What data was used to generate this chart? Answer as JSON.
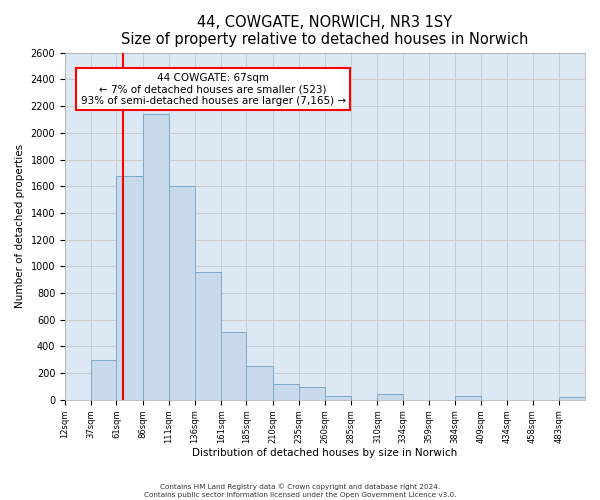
{
  "title": "44, COWGATE, NORWICH, NR3 1SY",
  "subtitle": "Size of property relative to detached houses in Norwich",
  "xlabel": "Distribution of detached houses by size in Norwich",
  "ylabel": "Number of detached properties",
  "bin_edges": [
    12,
    37,
    61,
    86,
    111,
    136,
    161,
    185,
    210,
    235,
    260,
    285,
    310,
    334,
    359,
    384,
    409,
    434,
    458,
    483,
    508
  ],
  "bin_heights": [
    0,
    300,
    1680,
    2140,
    1600,
    960,
    510,
    255,
    120,
    95,
    30,
    0,
    40,
    0,
    0,
    25,
    0,
    0,
    0,
    20
  ],
  "bar_facecolor": "#c9d9ec",
  "bar_edgecolor": "#7aaac8",
  "grid_color": "#cccccc",
  "background_color": "#dce9f5",
  "vline_x": 67,
  "vline_color": "red",
  "annotation_line1": "44 COWGATE: 67sqm",
  "annotation_line2": "← 7% of detached houses are smaller (523)",
  "annotation_line3": "93% of semi-detached houses are larger (7,165) →",
  "ylim": [
    0,
    2600
  ],
  "yticks": [
    0,
    200,
    400,
    600,
    800,
    1000,
    1200,
    1400,
    1600,
    1800,
    2000,
    2200,
    2400,
    2600
  ],
  "footer_line1": "Contains HM Land Registry data © Crown copyright and database right 2024.",
  "footer_line2": "Contains public sector information licensed under the Open Government Licence v3.0."
}
